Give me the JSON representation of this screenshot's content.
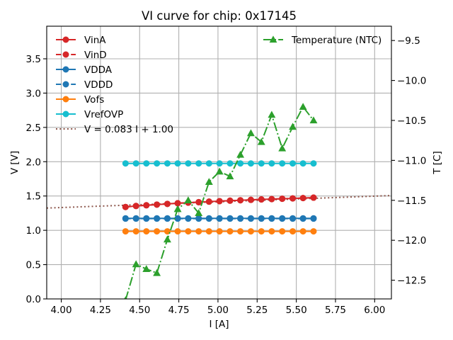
{
  "chart_data": {
    "type": "line",
    "title": "VI curve for chip: 0x17145",
    "xlabel": "I [A]",
    "ylabel": "V [V]",
    "y2label": "T [C]",
    "xlim": [
      3.907,
      6.107
    ],
    "ylim": [
      0,
      3.975
    ],
    "y2lim": [
      -12.734,
      -9.321
    ],
    "grid": true,
    "xticks": [
      4.0,
      4.25,
      4.5,
      4.75,
      5.0,
      5.25,
      5.5,
      5.75,
      6.0
    ],
    "xtick_labels": [
      "4.00",
      "4.25",
      "4.50",
      "4.75",
      "5.00",
      "5.25",
      "5.50",
      "5.75",
      "6.00"
    ],
    "yticks": [
      0.0,
      0.5,
      1.0,
      1.5,
      2.0,
      2.5,
      3.0,
      3.5
    ],
    "ytick_labels": [
      "0.0",
      "0.5",
      "1.0",
      "1.5",
      "2.0",
      "2.5",
      "3.0",
      "3.5"
    ],
    "y2ticks": [
      -12.5,
      -12.0,
      -11.5,
      -11.0,
      -10.5,
      -10.0,
      -9.5
    ],
    "y2tick_labels": [
      "−12.5",
      "−12.0",
      "−11.5",
      "−11.0",
      "−10.5",
      "−10.0",
      "−9.5"
    ],
    "x": [
      4.41,
      4.477,
      4.543,
      4.61,
      4.677,
      4.743,
      4.81,
      4.877,
      4.943,
      5.01,
      5.077,
      5.143,
      5.21,
      5.277,
      5.343,
      5.41,
      5.477,
      5.543,
      5.61
    ],
    "series": [
      {
        "name": "VinA",
        "axis": "left",
        "color": "#d62728",
        "linestyle": "solid",
        "marker": "circle",
        "values": [
          1.34,
          1.355,
          1.365,
          1.375,
          1.385,
          1.395,
          1.403,
          1.41,
          1.418,
          1.425,
          1.432,
          1.438,
          1.444,
          1.45,
          1.455,
          1.46,
          1.465,
          1.47,
          1.476
        ]
      },
      {
        "name": "VinD",
        "axis": "left",
        "color": "#d62728",
        "linestyle": "dashed",
        "marker": "circle",
        "values": [
          1.34,
          1.355,
          1.365,
          1.375,
          1.385,
          1.395,
          1.403,
          1.41,
          1.418,
          1.425,
          1.432,
          1.438,
          1.444,
          1.45,
          1.455,
          1.46,
          1.465,
          1.47,
          1.476
        ]
      },
      {
        "name": "VDDA",
        "axis": "left",
        "color": "#1f77b4",
        "linestyle": "solid",
        "marker": "circle",
        "values": [
          1.175,
          1.175,
          1.175,
          1.175,
          1.175,
          1.175,
          1.175,
          1.175,
          1.175,
          1.175,
          1.175,
          1.175,
          1.175,
          1.175,
          1.175,
          1.175,
          1.175,
          1.175,
          1.175
        ]
      },
      {
        "name": "VDDD",
        "axis": "left",
        "color": "#1f77b4",
        "linestyle": "dashed",
        "marker": "circle",
        "values": [
          1.17,
          1.17,
          1.17,
          1.17,
          1.17,
          1.17,
          1.17,
          1.17,
          1.17,
          1.17,
          1.17,
          1.17,
          1.17,
          1.17,
          1.17,
          1.17,
          1.17,
          1.17,
          1.17
        ]
      },
      {
        "name": "Vofs",
        "axis": "left",
        "color": "#ff7f0e",
        "linestyle": "solid",
        "marker": "circle",
        "values": [
          0.985,
          0.985,
          0.985,
          0.985,
          0.985,
          0.985,
          0.985,
          0.985,
          0.985,
          0.985,
          0.985,
          0.985,
          0.985,
          0.985,
          0.985,
          0.985,
          0.985,
          0.985,
          0.985
        ]
      },
      {
        "name": "VrefOVP",
        "axis": "left",
        "color": "#17becf",
        "linestyle": "solid",
        "marker": "circle",
        "values": [
          1.975,
          1.975,
          1.975,
          1.975,
          1.975,
          1.975,
          1.975,
          1.975,
          1.975,
          1.975,
          1.975,
          1.975,
          1.975,
          1.975,
          1.975,
          1.975,
          1.975,
          1.975,
          1.975
        ]
      },
      {
        "name": "Temperature (NTC)",
        "axis": "right",
        "color": "#2ca02c",
        "linestyle": "dashdot",
        "marker": "triangle",
        "values": [
          -12.75,
          -12.3,
          -12.36,
          -12.41,
          -11.99,
          -11.61,
          -11.5,
          -11.66,
          -11.27,
          -11.14,
          -11.2,
          -10.93,
          -10.66,
          -10.77,
          -10.43,
          -10.85,
          -10.58,
          -10.33,
          -10.5
        ]
      }
    ],
    "fit": {
      "name": "V = 0.083 I + 1.00",
      "slope": 0.083,
      "intercept": 1.0,
      "color": "#8c564b",
      "linestyle": "dotted",
      "x_range": [
        3.907,
        6.107
      ]
    },
    "legend_left": {
      "placement": "top-left",
      "entries": [
        "VinA",
        "VinD",
        "VDDA",
        "VDDD",
        "Vofs",
        "VrefOVP",
        "V = 0.083 I + 1.00"
      ]
    },
    "legend_right": {
      "placement": "top-right",
      "entries": [
        "Temperature (NTC)"
      ]
    }
  }
}
